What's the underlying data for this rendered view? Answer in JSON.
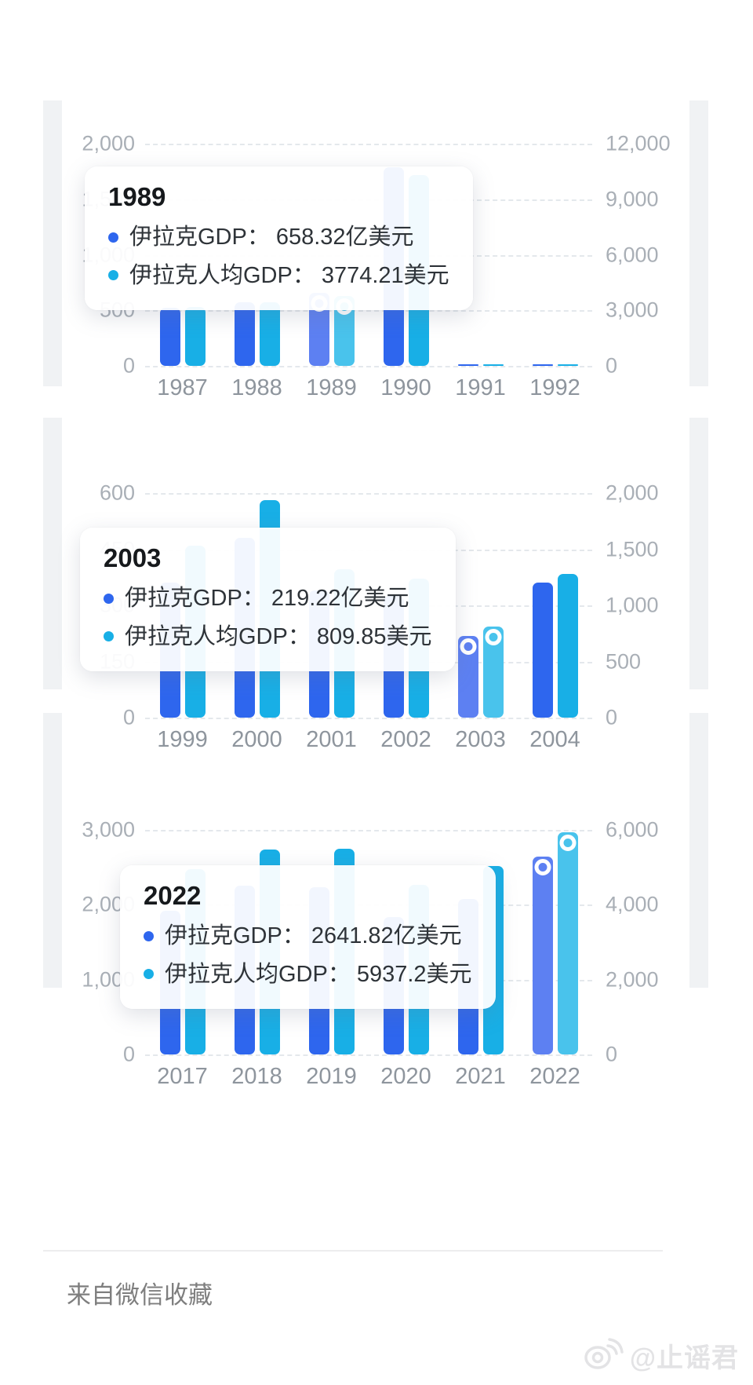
{
  "page": {
    "caption": "来自微信收藏",
    "watermark": "@止谣君"
  },
  "colors": {
    "gdp_bar": "#2e66ee",
    "gdp_bar_selected": "#5d80f2",
    "percapita_bar": "#18afe6",
    "percapita_bar_selected": "#49c3ec",
    "axis_text": "#a9afb6",
    "x_label_text": "#8e959d",
    "gridline": "#e4e8ec",
    "tooltip_title": "#16191c",
    "tooltip_text": "#2e3338"
  },
  "series_names": {
    "gdp": "伊拉克GDP",
    "percapita": "伊拉克人均GDP"
  },
  "chart_data": [
    {
      "type": "bar",
      "categories": [
        "1987",
        "1988",
        "1989",
        "1990",
        "1991",
        "1992"
      ],
      "series": [
        {
          "name": "伊拉克GDP",
          "axis": "left",
          "unit": "亿美元",
          "values": [
            520,
            575,
            658.32,
            1790,
            12,
            14
          ]
        },
        {
          "name": "伊拉克人均GDP",
          "axis": "right",
          "unit": "美元",
          "values": [
            3200,
            3430,
            3774.21,
            10300,
            70,
            80
          ]
        }
      ],
      "left_axis": {
        "max": 2000,
        "ticks": [
          "2,000",
          "1,500",
          "1,000",
          "500",
          "0"
        ]
      },
      "right_axis": {
        "max": 12000,
        "ticks": [
          "12,000",
          "9,000",
          "6,000",
          "3,000",
          "0"
        ]
      },
      "grid": true,
      "legend_position": "none",
      "selected_index": 2,
      "tooltip": {
        "title": "1989",
        "rows": [
          {
            "label": "伊拉克GDP：",
            "value": "658.32亿美元"
          },
          {
            "label": "伊拉克人均GDP：",
            "value": "3774.21美元"
          }
        ]
      }
    },
    {
      "type": "bar",
      "categories": [
        "1999",
        "2000",
        "2001",
        "2002",
        "2003",
        "2004"
      ],
      "series": [
        {
          "name": "伊拉克GDP",
          "axis": "left",
          "unit": "亿美元",
          "values": [
            360,
            480,
            340,
            325,
            219.22,
            360
          ]
        },
        {
          "name": "伊拉克人均GDP",
          "axis": "right",
          "unit": "美元",
          "values": [
            1530,
            1940,
            1320,
            1240,
            809.85,
            1280
          ]
        }
      ],
      "left_axis": {
        "max": 600,
        "ticks": [
          "600",
          "450",
          "300",
          "150",
          "0"
        ]
      },
      "right_axis": {
        "max": 2000,
        "ticks": [
          "2,000",
          "1,500",
          "1,000",
          "500",
          "0"
        ]
      },
      "grid": true,
      "legend_position": "none",
      "selected_index": 4,
      "tooltip": {
        "title": "2003",
        "rows": [
          {
            "label": "伊拉克GDP：",
            "value": "219.22亿美元"
          },
          {
            "label": "伊拉克人均GDP：",
            "value": "809.85美元"
          }
        ]
      }
    },
    {
      "type": "bar",
      "categories": [
        "2017",
        "2018",
        "2019",
        "2020",
        "2021",
        "2022"
      ],
      "series": [
        {
          "name": "伊拉克GDP",
          "axis": "left",
          "unit": "亿美元",
          "values": [
            1920,
            2260,
            2230,
            1840,
            2080,
            2641.82
          ]
        },
        {
          "name": "伊拉克人均GDP",
          "axis": "right",
          "unit": "美元",
          "values": [
            4950,
            5470,
            5500,
            4540,
            5040,
            5937.2
          ]
        }
      ],
      "left_axis": {
        "max": 3000,
        "ticks": [
          "3,000",
          "2,000",
          "1,000",
          "0"
        ]
      },
      "right_axis": {
        "max": 6000,
        "ticks": [
          "6,000",
          "4,000",
          "2,000",
          "0"
        ]
      },
      "grid": true,
      "legend_position": "none",
      "selected_index": 5,
      "tooltip": {
        "title": "2022",
        "rows": [
          {
            "label": "伊拉克GDP：",
            "value": "2641.82亿美元"
          },
          {
            "label": "伊拉克人均GDP：",
            "value": "5937.2美元"
          }
        ]
      }
    }
  ]
}
